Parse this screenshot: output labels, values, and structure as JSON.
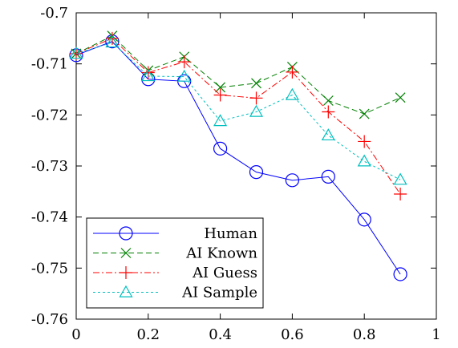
{
  "chart_data": {
    "type": "line",
    "title": "",
    "xlabel": "",
    "ylabel": "",
    "xlim": [
      0,
      1
    ],
    "ylim": [
      -0.76,
      -0.7
    ],
    "xticks": [
      0,
      0.2,
      0.4,
      0.6,
      0.8,
      1
    ],
    "xtick_labels": [
      "0",
      "0.2",
      "0.4",
      "0.6",
      "0.8",
      "1"
    ],
    "yticks": [
      -0.7,
      -0.71,
      -0.72,
      -0.73,
      -0.74,
      -0.75,
      -0.76
    ],
    "ytick_labels": [
      "-0.7",
      "-0.71",
      "-0.72",
      "-0.73",
      "-0.74",
      "-0.75",
      "-0.76"
    ],
    "grid": false,
    "legend_position": "bottom-left",
    "x": [
      0,
      0.1,
      0.2,
      0.3,
      0.4,
      0.5,
      0.6,
      0.7,
      0.8,
      0.9
    ],
    "series": [
      {
        "name": "Human",
        "color": "#0000ff",
        "marker": "circle",
        "dash": "solid",
        "values": [
          -0.7083,
          -0.7056,
          -0.713,
          -0.7134,
          -0.7266,
          -0.7312,
          -0.7328,
          -0.7321,
          -0.7405,
          -0.7512
        ]
      },
      {
        "name": "AI Known",
        "color": "#008000",
        "marker": "x",
        "dash": "dashed",
        "values": [
          -0.708,
          -0.7045,
          -0.7113,
          -0.7086,
          -0.7146,
          -0.7138,
          -0.7106,
          -0.7172,
          -0.7198,
          -0.7166
        ]
      },
      {
        "name": "AI Guess",
        "color": "#ff0000",
        "marker": "plus",
        "dash": "dashdot",
        "values": [
          -0.708,
          -0.705,
          -0.7117,
          -0.7096,
          -0.7161,
          -0.7167,
          -0.7116,
          -0.7194,
          -0.7252,
          -0.7355
        ]
      },
      {
        "name": "AI Sample",
        "color": "#00bfbf",
        "marker": "triangle",
        "dash": "dotted",
        "values": [
          -0.708,
          -0.7058,
          -0.7124,
          -0.7125,
          -0.7212,
          -0.7194,
          -0.7161,
          -0.724,
          -0.7291,
          -0.7327
        ]
      }
    ]
  }
}
